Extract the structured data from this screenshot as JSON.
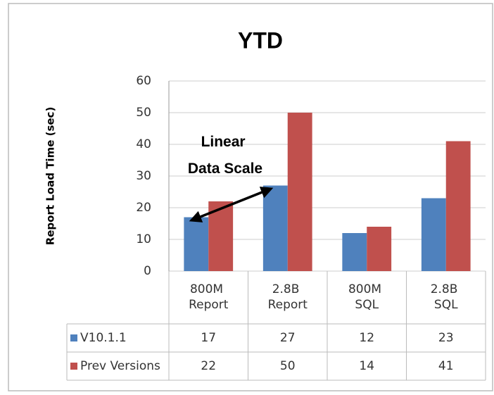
{
  "chart_data": {
    "type": "bar",
    "title": "YTD",
    "y_label": "Report Load Time (sec)",
    "annotation": "Linear Data Scale",
    "categories": [
      "800M Report",
      "2.8B Report",
      "800M SQL",
      "2.8B SQL"
    ],
    "series": [
      {
        "name": "V10.1.1",
        "color": "#4f81bd",
        "values": [
          17,
          27,
          12,
          23
        ]
      },
      {
        "name": "Prev Versions",
        "color": "#c0504d",
        "values": [
          22,
          50,
          14,
          41
        ]
      }
    ],
    "ylim": [
      0,
      60
    ],
    "yticks": [
      0,
      10,
      20,
      30,
      40,
      50,
      60
    ],
    "grid": true
  }
}
